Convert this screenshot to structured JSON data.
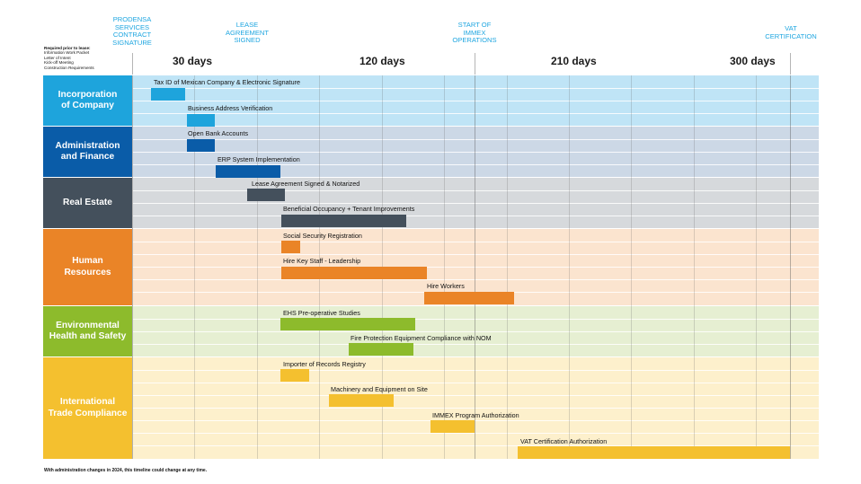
{
  "milestones": [
    {
      "line1": "PRODENSA",
      "line2": "SERVICES",
      "line3": "CONTRACT",
      "line4": "SIGNATURE"
    },
    {
      "line1": "LEASE",
      "line2": "AGREEMENT",
      "line3": "SIGNED"
    },
    {
      "line1": "START OF",
      "line2": "IMMEX",
      "line3": "OPERATIONS"
    },
    {
      "line1": "VAT",
      "line2": "CERTIFICATION"
    }
  ],
  "requirements": {
    "title": "Required prior to lease:",
    "items": [
      "Information Work Packet",
      "Letter of Intent",
      "Kick-off Meeting",
      "Construction Requirements"
    ]
  },
  "day_labels": [
    "30 days",
    "120 days",
    "210 days",
    "300 days"
  ],
  "categories": [
    {
      "line1": "Incorporation",
      "line2": "of Company",
      "color": "#1ea4dc",
      "bg": "#bfe4f6"
    },
    {
      "line1": "Administration",
      "line2": "and Finance",
      "color": "#0a5ca8",
      "bg": "#ccd8e6"
    },
    {
      "line1": "Real Estate",
      "line2": "",
      "color": "#44505c",
      "bg": "#d6d9dc"
    },
    {
      "line1": "Human",
      "line2": "Resources",
      "color": "#ea8427",
      "bg": "#fbe4cf"
    },
    {
      "line1": "Environmental",
      "line2": "Health and Safety",
      "color": "#8dbb2c",
      "bg": "#e6efd2"
    },
    {
      "line1": "International",
      "line2": "Trade Compliance",
      "color": "#f4c02f",
      "bg": "#fdf0cc"
    }
  ],
  "tasks": [
    {
      "label": "Tax ID of Mexican Company & Electronic Signature",
      "color": "#1ea4dc"
    },
    {
      "label": "Business Address Verification",
      "color": "#1ea4dc"
    },
    {
      "label": "Open Bank Accounts",
      "color": "#0a5ca8"
    },
    {
      "label": "ERP System Implementation",
      "color": "#0a5ca8"
    },
    {
      "label": "Lease Agreement Signed & Notarized",
      "color": "#44505c"
    },
    {
      "label": "Beneficial Occupancy + Tenant Improvements",
      "color": "#44505c"
    },
    {
      "label": "Social Security Registration",
      "color": "#ea8427"
    },
    {
      "label": "Hire Key Staff - Leadership",
      "color": "#ea8427"
    },
    {
      "label": "Hire Workers",
      "color": "#ea8427"
    },
    {
      "label": "EHS Pre-operative Studies",
      "color": "#8dbb2c"
    },
    {
      "label": "Fire Protection Equipment Compliance with NOM",
      "color": "#8dbb2c"
    },
    {
      "label": "Importer of Records Registry",
      "color": "#f4c02f"
    },
    {
      "label": "Machinery and Equipment on Site",
      "color": "#f4c02f"
    },
    {
      "label": "IMMEX Program Authorization",
      "color": "#f4c02f"
    },
    {
      "label": "VAT Certification Authorization",
      "color": "#f4c02f"
    }
  ],
  "footnote": "With administration changes in 2024, this timeline could change at any time."
}
